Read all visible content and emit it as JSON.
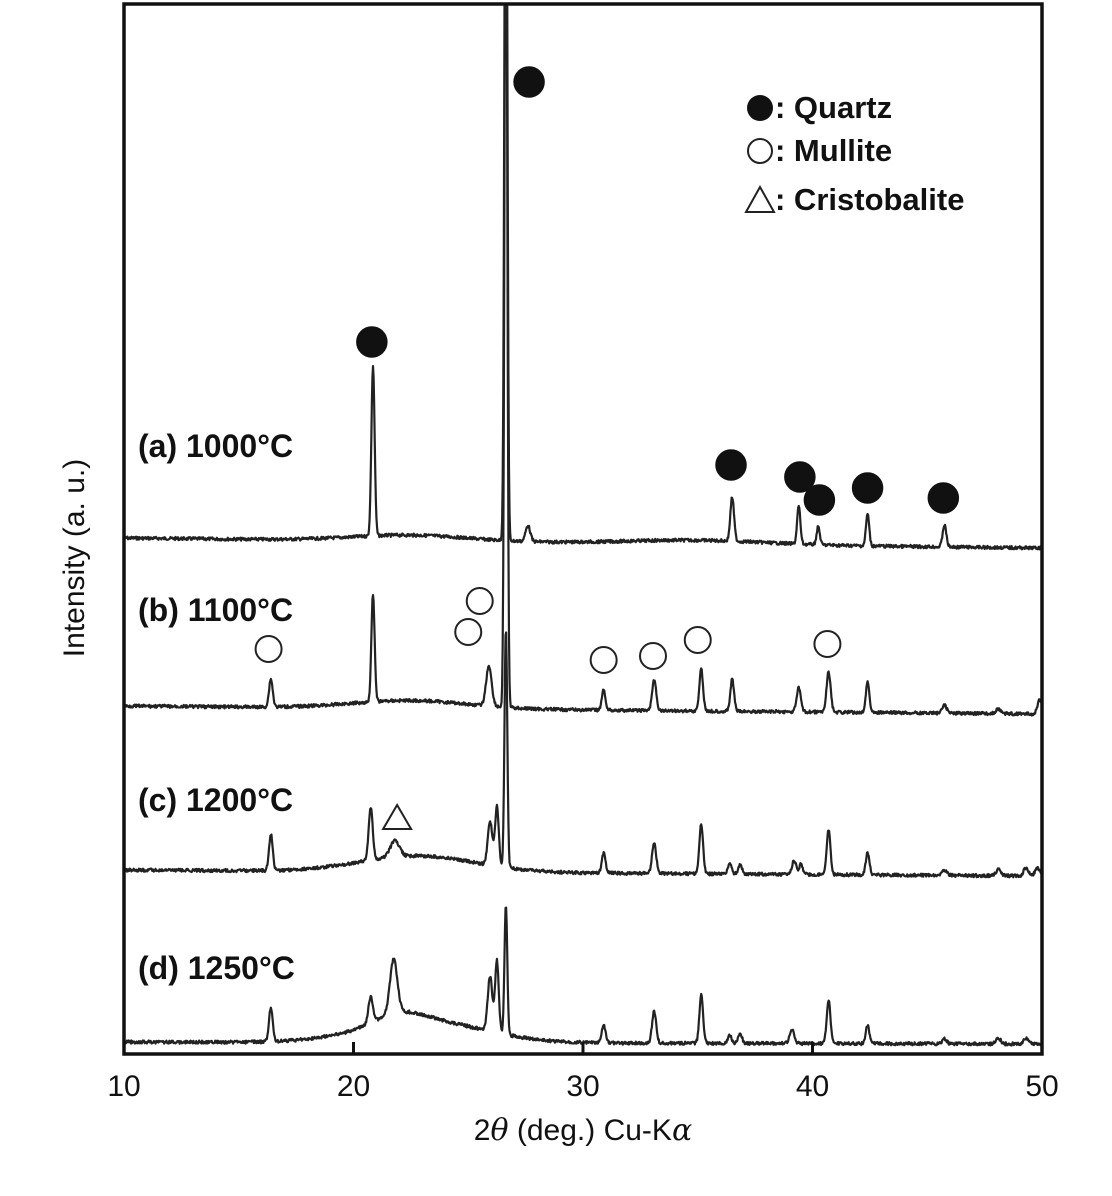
{
  "chart_data": {
    "type": "line",
    "xlabel": "2θ (deg.) Cu-Kα",
    "xlabel_parts": {
      "prefix": "2",
      "theta": "θ",
      "middle": " (deg.) Cu-K",
      "alpha": "α"
    },
    "ylabel": "Intensity (a. u.)",
    "xlim": [
      10,
      50
    ],
    "x_ticks": [
      10,
      20,
      30,
      40,
      50
    ],
    "x_tick_labels": [
      "10",
      "20",
      "30",
      "40",
      "50"
    ],
    "grid": false,
    "legend_position": "top-right",
    "legend": [
      {
        "symbol": "filled-circle",
        "label": ": Quartz"
      },
      {
        "symbol": "open-circle",
        "label": ": Mullite"
      },
      {
        "symbol": "open-triangle",
        "label": ": Cristobalite"
      }
    ],
    "series": [
      {
        "name": "(a) 1000°C",
        "baseline": 0.0,
        "end": 0.0,
        "peaks": [
          [
            20.85,
            170,
            0.07
          ],
          [
            26.64,
            900,
            0.06
          ],
          [
            27.6,
            16,
            0.1
          ],
          [
            36.5,
            44,
            0.08
          ],
          [
            39.4,
            38,
            0.07
          ],
          [
            40.25,
            18,
            0.07
          ],
          [
            42.4,
            32,
            0.07
          ],
          [
            45.75,
            22,
            0.08
          ]
        ],
        "humps": [
          [
            22.5,
            6,
            2.5
          ],
          [
            35.0,
            4,
            3.0
          ]
        ]
      },
      {
        "name": "(b) 1100°C",
        "baseline": 0.0,
        "end": 0.0,
        "peaks": [
          [
            16.4,
            28,
            0.08
          ],
          [
            20.85,
            108,
            0.07
          ],
          [
            25.9,
            40,
            0.12
          ],
          [
            26.64,
            900,
            0.06
          ],
          [
            30.9,
            20,
            0.08
          ],
          [
            33.1,
            30,
            0.09
          ],
          [
            35.15,
            42,
            0.08
          ],
          [
            36.5,
            32,
            0.08
          ],
          [
            39.4,
            24,
            0.09
          ],
          [
            40.7,
            40,
            0.09
          ],
          [
            42.4,
            30,
            0.08
          ],
          [
            45.75,
            8,
            0.1
          ],
          [
            48.1,
            5,
            0.1
          ],
          [
            49.9,
            14,
            0.1
          ]
        ],
        "humps": [
          [
            22.5,
            8,
            2.5
          ]
        ]
      },
      {
        "name": "(c) 1200°C",
        "baseline": 0.0,
        "end": 0.0,
        "peaks": [
          [
            16.4,
            36,
            0.08
          ],
          [
            20.75,
            52,
            0.09
          ],
          [
            21.8,
            16,
            0.2
          ],
          [
            25.95,
            44,
            0.1
          ],
          [
            26.25,
            60,
            0.08
          ],
          [
            26.64,
            240,
            0.06
          ],
          [
            30.9,
            20,
            0.08
          ],
          [
            33.1,
            30,
            0.09
          ],
          [
            35.15,
            50,
            0.08
          ],
          [
            36.4,
            10,
            0.08
          ],
          [
            36.85,
            10,
            0.08
          ],
          [
            39.2,
            14,
            0.09
          ],
          [
            39.5,
            10,
            0.08
          ],
          [
            40.7,
            45,
            0.08
          ],
          [
            42.4,
            22,
            0.08
          ],
          [
            45.75,
            5,
            0.1
          ],
          [
            48.1,
            6,
            0.1
          ],
          [
            49.3,
            8,
            0.1
          ],
          [
            49.8,
            8,
            0.1
          ]
        ],
        "humps": [
          [
            22.8,
            16,
            2.5
          ]
        ]
      },
      {
        "name": "(d) 1250°C",
        "baseline": 0.0,
        "end": 0.0,
        "peaks": [
          [
            16.4,
            34,
            0.08
          ],
          [
            20.75,
            26,
            0.1
          ],
          [
            21.75,
            54,
            0.16
          ],
          [
            25.95,
            55,
            0.1
          ],
          [
            26.25,
            72,
            0.08
          ],
          [
            26.64,
            130,
            0.06
          ],
          [
            30.9,
            18,
            0.08
          ],
          [
            33.1,
            32,
            0.09
          ],
          [
            35.15,
            48,
            0.08
          ],
          [
            36.4,
            8,
            0.08
          ],
          [
            36.85,
            10,
            0.08
          ],
          [
            39.1,
            14,
            0.1
          ],
          [
            40.7,
            44,
            0.08
          ],
          [
            42.4,
            18,
            0.08
          ],
          [
            45.75,
            5,
            0.1
          ],
          [
            48.1,
            6,
            0.1
          ],
          [
            49.3,
            6,
            0.1
          ]
        ],
        "humps": [
          [
            23.0,
            22,
            2.6
          ],
          [
            22.0,
            10,
            1.0
          ]
        ]
      }
    ],
    "annotations": [
      {
        "marker": "filled-circle",
        "x": 27.65,
        "series": "(a) 1000°C",
        "phase": "Quartz",
        "clipped_top": true
      },
      {
        "marker": "filled-circle",
        "x": 20.8,
        "series": "(a) 1000°C",
        "phase": "Quartz"
      },
      {
        "marker": "filled-circle",
        "x": 36.45,
        "series": "(a) 1000°C",
        "phase": "Quartz"
      },
      {
        "marker": "filled-circle",
        "x": 39.45,
        "series": "(a) 1000°C",
        "phase": "Quartz"
      },
      {
        "marker": "filled-circle",
        "x": 40.3,
        "series": "(a) 1000°C",
        "phase": "Quartz"
      },
      {
        "marker": "filled-circle",
        "x": 42.4,
        "series": "(a) 1000°C",
        "phase": "Quartz"
      },
      {
        "marker": "filled-circle",
        "x": 45.7,
        "series": "(a) 1000°C",
        "phase": "Quartz"
      },
      {
        "marker": "open-circle",
        "x": 16.3,
        "series": "(b) 1100°C",
        "phase": "Mullite"
      },
      {
        "marker": "open-circle",
        "x": 25.0,
        "series": "(b) 1100°C",
        "phase": "Mullite"
      },
      {
        "marker": "open-circle",
        "x": 25.5,
        "series": "(b) 1100°C",
        "phase": "Mullite"
      },
      {
        "marker": "open-circle",
        "x": 30.9,
        "series": "(b) 1100°C",
        "phase": "Mullite"
      },
      {
        "marker": "open-circle",
        "x": 33.05,
        "series": "(b) 1100°C",
        "phase": "Mullite"
      },
      {
        "marker": "open-circle",
        "x": 35.0,
        "series": "(b) 1100°C",
        "phase": "Mullite"
      },
      {
        "marker": "open-circle",
        "x": 40.65,
        "series": "(b) 1100°C",
        "phase": "Mullite"
      },
      {
        "marker": "open-triangle",
        "x": 21.9,
        "series": "(c) 1200°C",
        "phase": "Cristobalite"
      }
    ]
  }
}
